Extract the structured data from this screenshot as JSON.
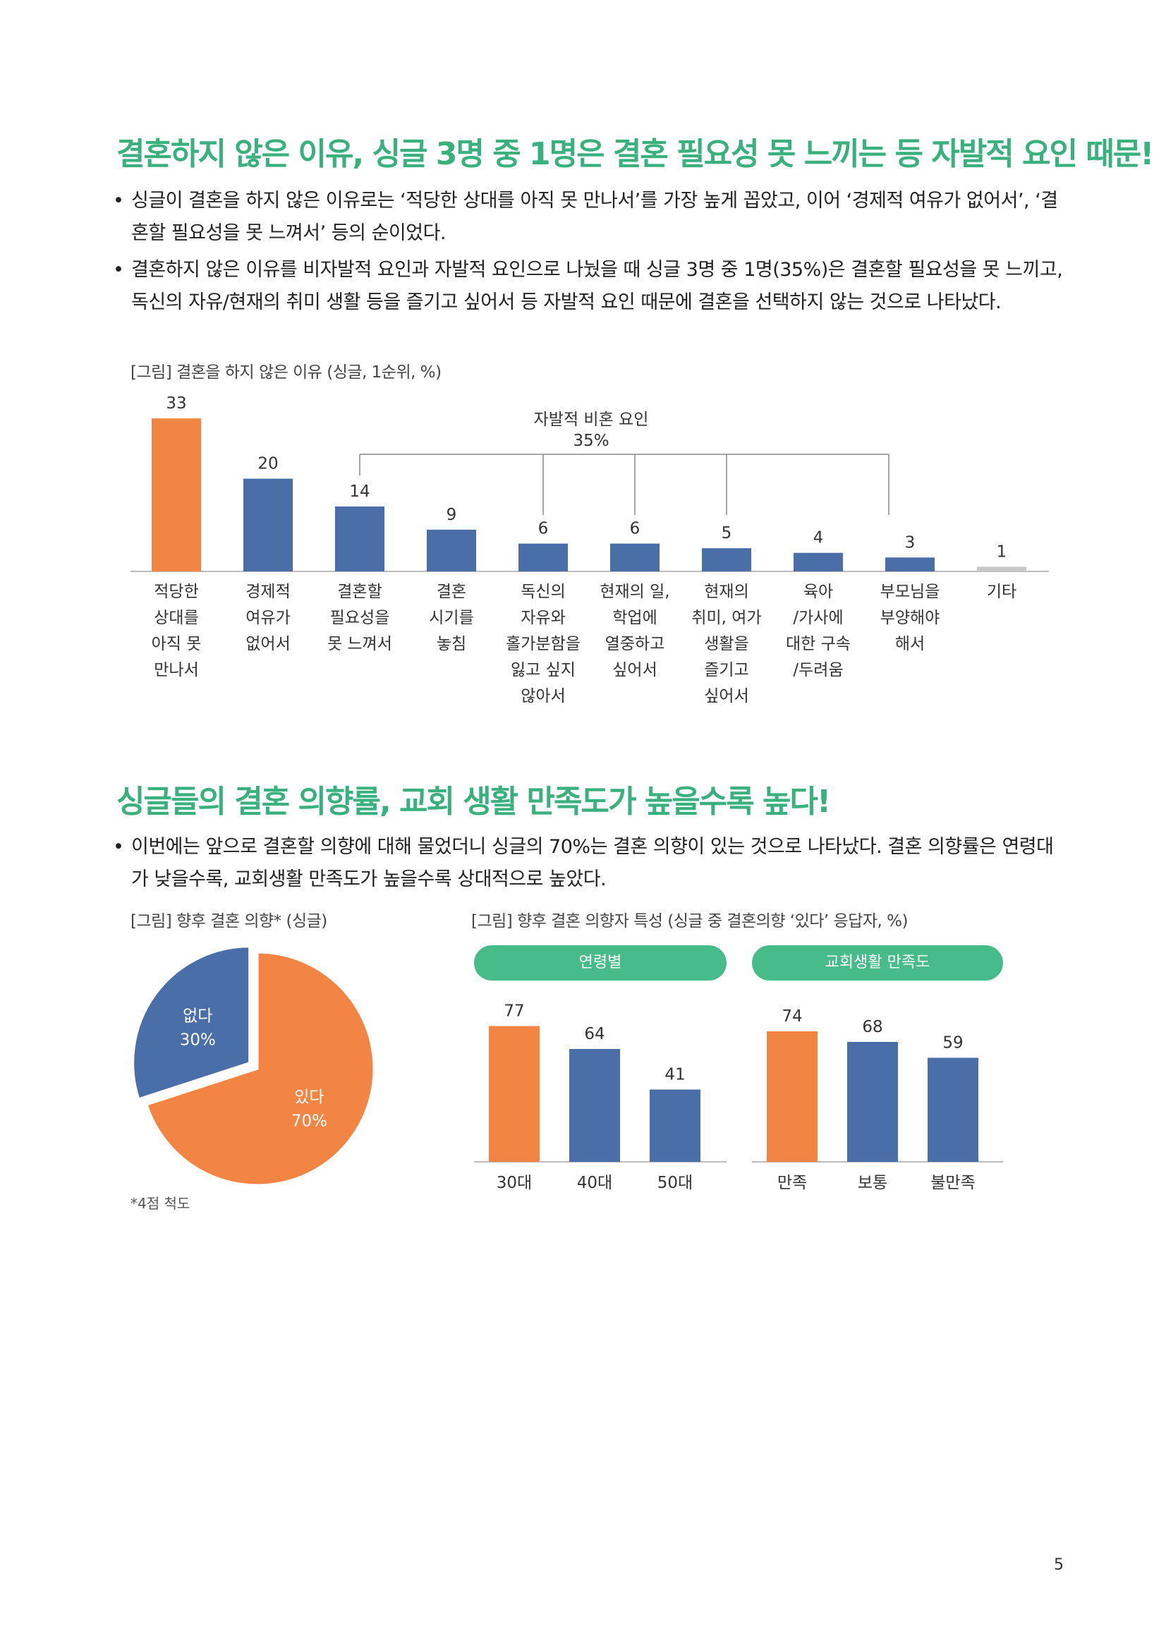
{
  "section1": {
    "heading": "결혼하지 않은 이유, 싱글 3명 중 1명은 결혼 필요성 못 느끼는 등 자발적 요인 때문!",
    "bullets": [
      "싱글이 결혼을 하지 않은 이유로는 ‘적당한 상대를 아직 못 만나서’를 가장 높게 꼽았고, 이어 ‘경제적 여유가 없어서’, ‘결혼할 필요성을 못 느껴서’ 등의 순이었다.",
      "결혼하지 않은 이유를 비자발적 요인과 자발적 요인으로 나눴을 때 싱글 3명 중 1명(35%)은 결혼할 필요성을 못 느끼고, 독신의 자유/현재의 취미 생활 등을 즐기고 싶어서 등 자발적 요인 때문에 결혼을 선택하지 않는 것으로 나타났다."
    ],
    "figure_caption": "[그림] 결혼을 하지 않은 이유 (싱글, 1순위, %)"
  },
  "section2": {
    "heading": "싱글들의 결혼 의향률, 교회 생활 만족도가 높을수록 높다!",
    "bullets": [
      "이번에는 앞으로 결혼할 의향에 대해 물었더니 싱글의 70%는 결혼 의향이 있는 것으로 나타났다. 결혼 의향률은 연령대가 낮을수록, 교회생활 만족도가 높을수록 상대적으로 높았다."
    ],
    "pie_caption": "[그림] 향후 결혼 의향* (싱글)",
    "bars_caption": "[그림] 향후 결혼 의향자 특성 (싱글 중 결혼의향 ‘있다’ 응답자, %)",
    "footnote": "*4점 척도"
  },
  "page_number": "5",
  "colors": {
    "orange": "#f28444",
    "blue": "#4a6ea8",
    "gray": "#c8c8c8",
    "green": "#48bb8a",
    "heading": "#3ab07f"
  },
  "chart_data": [
    {
      "type": "bar",
      "categories": [
        [
          "적당한",
          "상대를",
          "아직 못",
          "만나서"
        ],
        [
          "경제적",
          "여유가",
          "없어서"
        ],
        [
          "결혼할",
          "필요성을",
          "못 느껴서"
        ],
        [
          "결혼",
          "시기를",
          "놓침"
        ],
        [
          "독신의",
          "자유와",
          "홀가분함을",
          "잃고 싶지",
          "않아서"
        ],
        [
          "현재의 일,",
          "학업에",
          "열중하고",
          "싶어서"
        ],
        [
          "현재의",
          "취미, 여가",
          "생활을",
          "즐기고",
          "싶어서"
        ],
        [
          "육아",
          "/가사에",
          "대한 구속",
          "/두려움"
        ],
        [
          "부모님을",
          "부양해야",
          "해서"
        ],
        [
          "기타"
        ]
      ],
      "values": [
        33,
        20,
        14,
        9,
        6,
        6,
        5,
        4,
        3,
        1
      ],
      "colors": [
        "#f28444",
        "#4a6ea8",
        "#4a6ea8",
        "#4a6ea8",
        "#4a6ea8",
        "#4a6ea8",
        "#4a6ea8",
        "#4a6ea8",
        "#4a6ea8",
        "#c8c8c8"
      ],
      "ylim": [
        0,
        35
      ],
      "annotation": {
        "label": "자발적 비혼 요인",
        "value": "35%",
        "spans_categories": [
          2,
          8
        ],
        "connects": [
          2,
          4,
          5,
          6,
          8
        ]
      }
    },
    {
      "type": "pie",
      "slices": [
        {
          "label": "있다",
          "value": 70,
          "display": "70%",
          "color": "#f28444"
        },
        {
          "label": "없다",
          "value": 30,
          "display": "30%",
          "color": "#4a6ea8"
        }
      ]
    },
    {
      "type": "bar",
      "title": "연령별",
      "categories": [
        "30대",
        "40대",
        "50대"
      ],
      "values": [
        77,
        64,
        41
      ],
      "colors": [
        "#f28444",
        "#4a6ea8",
        "#4a6ea8"
      ],
      "ylim": [
        0,
        80
      ]
    },
    {
      "type": "bar",
      "title": "교회생활 만족도",
      "categories": [
        "만족",
        "보통",
        "불만족"
      ],
      "values": [
        74,
        68,
        59
      ],
      "colors": [
        "#f28444",
        "#4a6ea8",
        "#4a6ea8"
      ],
      "ylim": [
        0,
        80
      ]
    }
  ]
}
